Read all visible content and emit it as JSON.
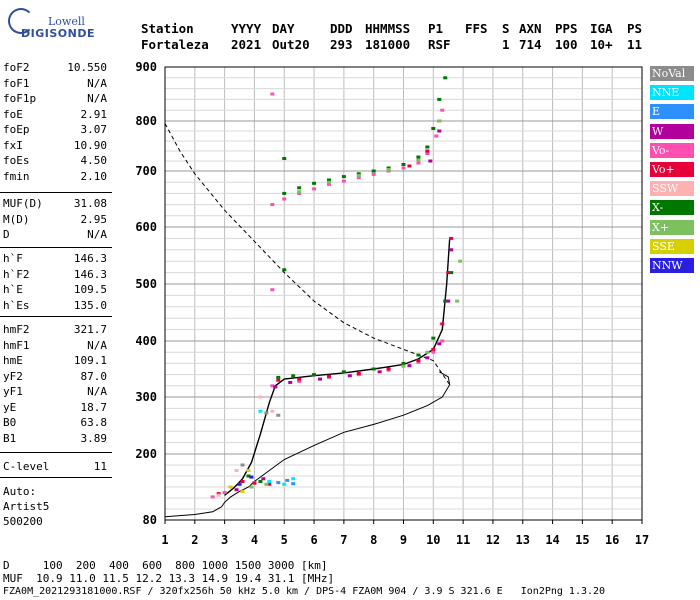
{
  "logo": {
    "line1": "Lowell",
    "line2": "DIGISONDE"
  },
  "header": {
    "labels": [
      "Station",
      "YYYY",
      "DAY",
      "DDD",
      "HHMMSS",
      "P1",
      "FFS",
      "S",
      "AXN",
      "PPS",
      "IGA",
      "PS"
    ],
    "values": [
      "Fortaleza",
      "2021",
      "Out20",
      "293",
      "181000",
      "RSF",
      "",
      "1",
      "714",
      "100",
      "10+",
      "11"
    ]
  },
  "params_group1": [
    {
      "name": "foF2",
      "value": "10.550"
    },
    {
      "name": "foF1",
      "value": "N/A"
    },
    {
      "name": "foF1p",
      "value": "N/A"
    },
    {
      "name": "foE",
      "value": "2.91"
    },
    {
      "name": "foEp",
      "value": "3.07"
    },
    {
      "name": "fxI",
      "value": "10.90"
    },
    {
      "name": "foEs",
      "value": "4.50"
    },
    {
      "name": "fmin",
      "value": "2.10"
    }
  ],
  "params_group2": [
    {
      "name": "MUF(D)",
      "value": "31.08"
    },
    {
      "name": "M(D)",
      "value": "2.95"
    },
    {
      "name": "D",
      "value": "N/A"
    }
  ],
  "params_group3": [
    {
      "name": "h`F",
      "value": "146.3"
    },
    {
      "name": "h`F2",
      "value": "146.3"
    },
    {
      "name": "h`E",
      "value": "109.5"
    },
    {
      "name": "h`Es",
      "value": "135.0"
    }
  ],
  "params_group4": [
    {
      "name": "hmF2",
      "value": "321.7"
    },
    {
      "name": "hmF1",
      "value": "N/A"
    },
    {
      "name": "hmE",
      "value": "109.1"
    },
    {
      "name": "yF2",
      "value": "87.0"
    },
    {
      "name": "yF1",
      "value": "N/A"
    },
    {
      "name": "yE",
      "value": "18.7"
    },
    {
      "name": "B0",
      "value": "63.8"
    },
    {
      "name": "B1",
      "value": "3.89"
    }
  ],
  "params_group5": [
    {
      "name": "C-level",
      "value": "11"
    }
  ],
  "autoscaling": {
    "line1": "Auto:",
    "line2": "Artist5",
    "line3": "500200"
  },
  "legend": [
    {
      "label": "NoVal",
      "color": "#8c8c8c"
    },
    {
      "label": "NNE",
      "color": "#00e5ff"
    },
    {
      "label": "E",
      "color": "#2e90ff"
    },
    {
      "label": "W",
      "color": "#b2009c"
    },
    {
      "label": "Vo-",
      "color": "#ff4fb0"
    },
    {
      "label": "Vo+",
      "color": "#e8003a"
    },
    {
      "label": "SSW",
      "color": "#ffb0b0"
    },
    {
      "label": "X-",
      "color": "#007800"
    },
    {
      "label": "X+",
      "color": "#7cc060"
    },
    {
      "label": "SSE",
      "color": "#d6d000"
    },
    {
      "label": "NNW",
      "color": "#2a1ee0"
    }
  ],
  "chart_data": {
    "type": "scatter",
    "title": "",
    "xlabel": "",
    "ylabel": "",
    "xlim": [
      1,
      17
    ],
    "ylim": [
      80,
      900
    ],
    "x_ticks": [
      1,
      2,
      3,
      4,
      5,
      6,
      7,
      8,
      9,
      10,
      11,
      12,
      13,
      14,
      15,
      16,
      17
    ],
    "y_ticks": [
      80,
      200,
      300,
      400,
      500,
      600,
      700,
      800,
      900
    ],
    "grid": true,
    "echo_series": [
      {
        "name": "X-",
        "color": "#007800",
        "points": [
          [
            5.0,
            660
          ],
          [
            5.5,
            670
          ],
          [
            6.0,
            678
          ],
          [
            6.5,
            684
          ],
          [
            7.0,
            690
          ],
          [
            7.5,
            695
          ],
          [
            8.0,
            700
          ],
          [
            8.5,
            706
          ],
          [
            9.0,
            713
          ],
          [
            9.5,
            728
          ],
          [
            9.8,
            748
          ],
          [
            10.0,
            785
          ],
          [
            10.2,
            840
          ],
          [
            10.4,
            880
          ],
          [
            5.0,
            525
          ],
          [
            5.0,
            725
          ],
          [
            3.8,
            160
          ],
          [
            4.2,
            150
          ],
          [
            4.8,
            335
          ],
          [
            5.3,
            338
          ],
          [
            6.0,
            340
          ],
          [
            7.0,
            345
          ],
          [
            8.0,
            350
          ],
          [
            9.0,
            360
          ],
          [
            9.5,
            375
          ],
          [
            10.0,
            405
          ],
          [
            10.4,
            470
          ],
          [
            10.6,
            520
          ]
        ]
      },
      {
        "name": "Vo-",
        "color": "#ff4fb0",
        "points": [
          [
            4.6,
            640
          ],
          [
            5.0,
            650
          ],
          [
            5.5,
            660
          ],
          [
            6.0,
            668
          ],
          [
            6.5,
            676
          ],
          [
            7.0,
            682
          ],
          [
            7.5,
            688
          ],
          [
            8.0,
            694
          ],
          [
            8.5,
            700
          ],
          [
            9.0,
            706
          ],
          [
            9.5,
            716
          ],
          [
            9.8,
            735
          ],
          [
            10.1,
            770
          ],
          [
            10.3,
            820
          ],
          [
            4.6,
            850
          ],
          [
            4.6,
            490
          ],
          [
            3.0,
            130
          ],
          [
            3.5,
            145
          ],
          [
            4.0,
            148
          ],
          [
            2.6,
            122
          ],
          [
            4.6,
            320
          ],
          [
            5.5,
            328
          ],
          [
            6.5,
            335
          ],
          [
            7.5,
            340
          ],
          [
            8.5,
            348
          ],
          [
            9.5,
            362
          ],
          [
            10.0,
            380
          ],
          [
            10.3,
            400
          ]
        ]
      },
      {
        "name": "Vo+",
        "color": "#e8003a",
        "points": [
          [
            3.2,
            140
          ],
          [
            3.6,
            150
          ],
          [
            4.0,
            147
          ],
          [
            4.5,
            145
          ],
          [
            2.8,
            128
          ],
          [
            4.8,
            330
          ],
          [
            5.5,
            332
          ],
          [
            6.5,
            337
          ],
          [
            7.5,
            342
          ],
          [
            8.5,
            350
          ],
          [
            9.5,
            365
          ],
          [
            10.0,
            385
          ],
          [
            10.3,
            430
          ],
          [
            10.5,
            520
          ],
          [
            10.6,
            580
          ],
          [
            9.2,
            710
          ],
          [
            9.8,
            740
          ],
          [
            10.2,
            800
          ]
        ]
      },
      {
        "name": "W",
        "color": "#b2009c",
        "points": [
          [
            4.7,
            318
          ],
          [
            5.2,
            326
          ],
          [
            6.2,
            332
          ],
          [
            7.2,
            338
          ],
          [
            8.2,
            345
          ],
          [
            9.2,
            356
          ],
          [
            9.8,
            370
          ],
          [
            10.2,
            395
          ],
          [
            10.5,
            470
          ],
          [
            10.6,
            560
          ],
          [
            3.4,
            135
          ],
          [
            4.3,
            155
          ],
          [
            9.9,
            720
          ],
          [
            10.2,
            780
          ]
        ]
      },
      {
        "name": "X+",
        "color": "#7cc060",
        "points": [
          [
            5.5,
            663
          ],
          [
            6.5,
            680
          ],
          [
            7.5,
            692
          ],
          [
            8.5,
            703
          ],
          [
            9.5,
            722
          ],
          [
            10.2,
            800
          ],
          [
            3.9,
            140
          ],
          [
            4.4,
            145
          ],
          [
            10.8,
            470
          ],
          [
            10.9,
            540
          ],
          [
            9.0,
            355
          ],
          [
            9.8,
            380
          ]
        ]
      },
      {
        "name": "SSW",
        "color": "#ffb0b0",
        "points": [
          [
            2.8,
            125
          ],
          [
            3.4,
            170
          ],
          [
            4.2,
            300
          ],
          [
            4.6,
            275
          ]
        ]
      },
      {
        "name": "E",
        "color": "#2e90ff",
        "points": [
          [
            4.8,
            148
          ],
          [
            5.1,
            152
          ],
          [
            5.3,
            146
          ]
        ]
      },
      {
        "name": "NNE",
        "color": "#00e5ff",
        "points": [
          [
            4.5,
            150
          ],
          [
            5.0,
            145
          ],
          [
            5.3,
            155
          ],
          [
            4.2,
            275
          ]
        ]
      },
      {
        "name": "SSE",
        "color": "#d6d000",
        "points": [
          [
            3.2,
            140
          ],
          [
            3.6,
            132
          ],
          [
            3.8,
            170
          ]
        ]
      },
      {
        "name": "NNW",
        "color": "#2a1ee0",
        "points": [
          [
            3.5,
            145
          ],
          [
            3.9,
            158
          ]
        ]
      },
      {
        "name": "NoVal",
        "color": "#8c8c8c",
        "points": [
          [
            4.4,
            272
          ],
          [
            4.8,
            268
          ],
          [
            3.6,
            180
          ]
        ]
      }
    ],
    "trace_black": [
      [
        3.0,
        125
      ],
      [
        3.3,
        138
      ],
      [
        3.6,
        155
      ],
      [
        3.9,
        185
      ],
      [
        4.2,
        235
      ],
      [
        4.5,
        290
      ],
      [
        4.7,
        320
      ],
      [
        5.0,
        332
      ],
      [
        6.0,
        338
      ],
      [
        7.0,
        343
      ],
      [
        8.0,
        350
      ],
      [
        9.0,
        358
      ],
      [
        9.5,
        368
      ],
      [
        10.0,
        385
      ],
      [
        10.3,
        420
      ],
      [
        10.45,
        500
      ],
      [
        10.55,
        580
      ]
    ],
    "profile_solid": [
      [
        1.0,
        86
      ],
      [
        2.0,
        90
      ],
      [
        2.6,
        95
      ],
      [
        2.9,
        104
      ],
      [
        3.0,
        112
      ],
      [
        3.2,
        122
      ],
      [
        3.5,
        132
      ],
      [
        3.8,
        140
      ],
      [
        4.0,
        150
      ],
      [
        4.5,
        170
      ],
      [
        5.0,
        190
      ],
      [
        6.0,
        215
      ],
      [
        7.0,
        238
      ],
      [
        8.0,
        252
      ],
      [
        9.0,
        268
      ],
      [
        9.8,
        285
      ],
      [
        10.3,
        300
      ],
      [
        10.55,
        322
      ],
      [
        10.5,
        336
      ],
      [
        10.2,
        345
      ]
    ],
    "extrapolated_dashed": [
      [
        1.0,
        795
      ],
      [
        1.5,
        740
      ],
      [
        2.0,
        695
      ],
      [
        3.0,
        630
      ],
      [
        4.0,
        575
      ],
      [
        5.0,
        520
      ],
      [
        6.0,
        470
      ],
      [
        7.0,
        432
      ],
      [
        8.0,
        405
      ],
      [
        9.0,
        385
      ],
      [
        10.0,
        365
      ],
      [
        10.55,
        322
      ]
    ]
  },
  "footer": {
    "line1": "D     100  200  400  600  800 1000 1500 3000 [km]",
    "line2": "MUF  10.9 11.0 11.5 12.2 13.3 14.9 19.4 31.1 [MHz]",
    "line3": "FZA0M_2021293181000.RSF / 320fx256h 50 kHz 5.0 km / DPS-4 FZA0M 904 / 3.9 S 321.6 E   Ion2Png 1.3.20"
  }
}
